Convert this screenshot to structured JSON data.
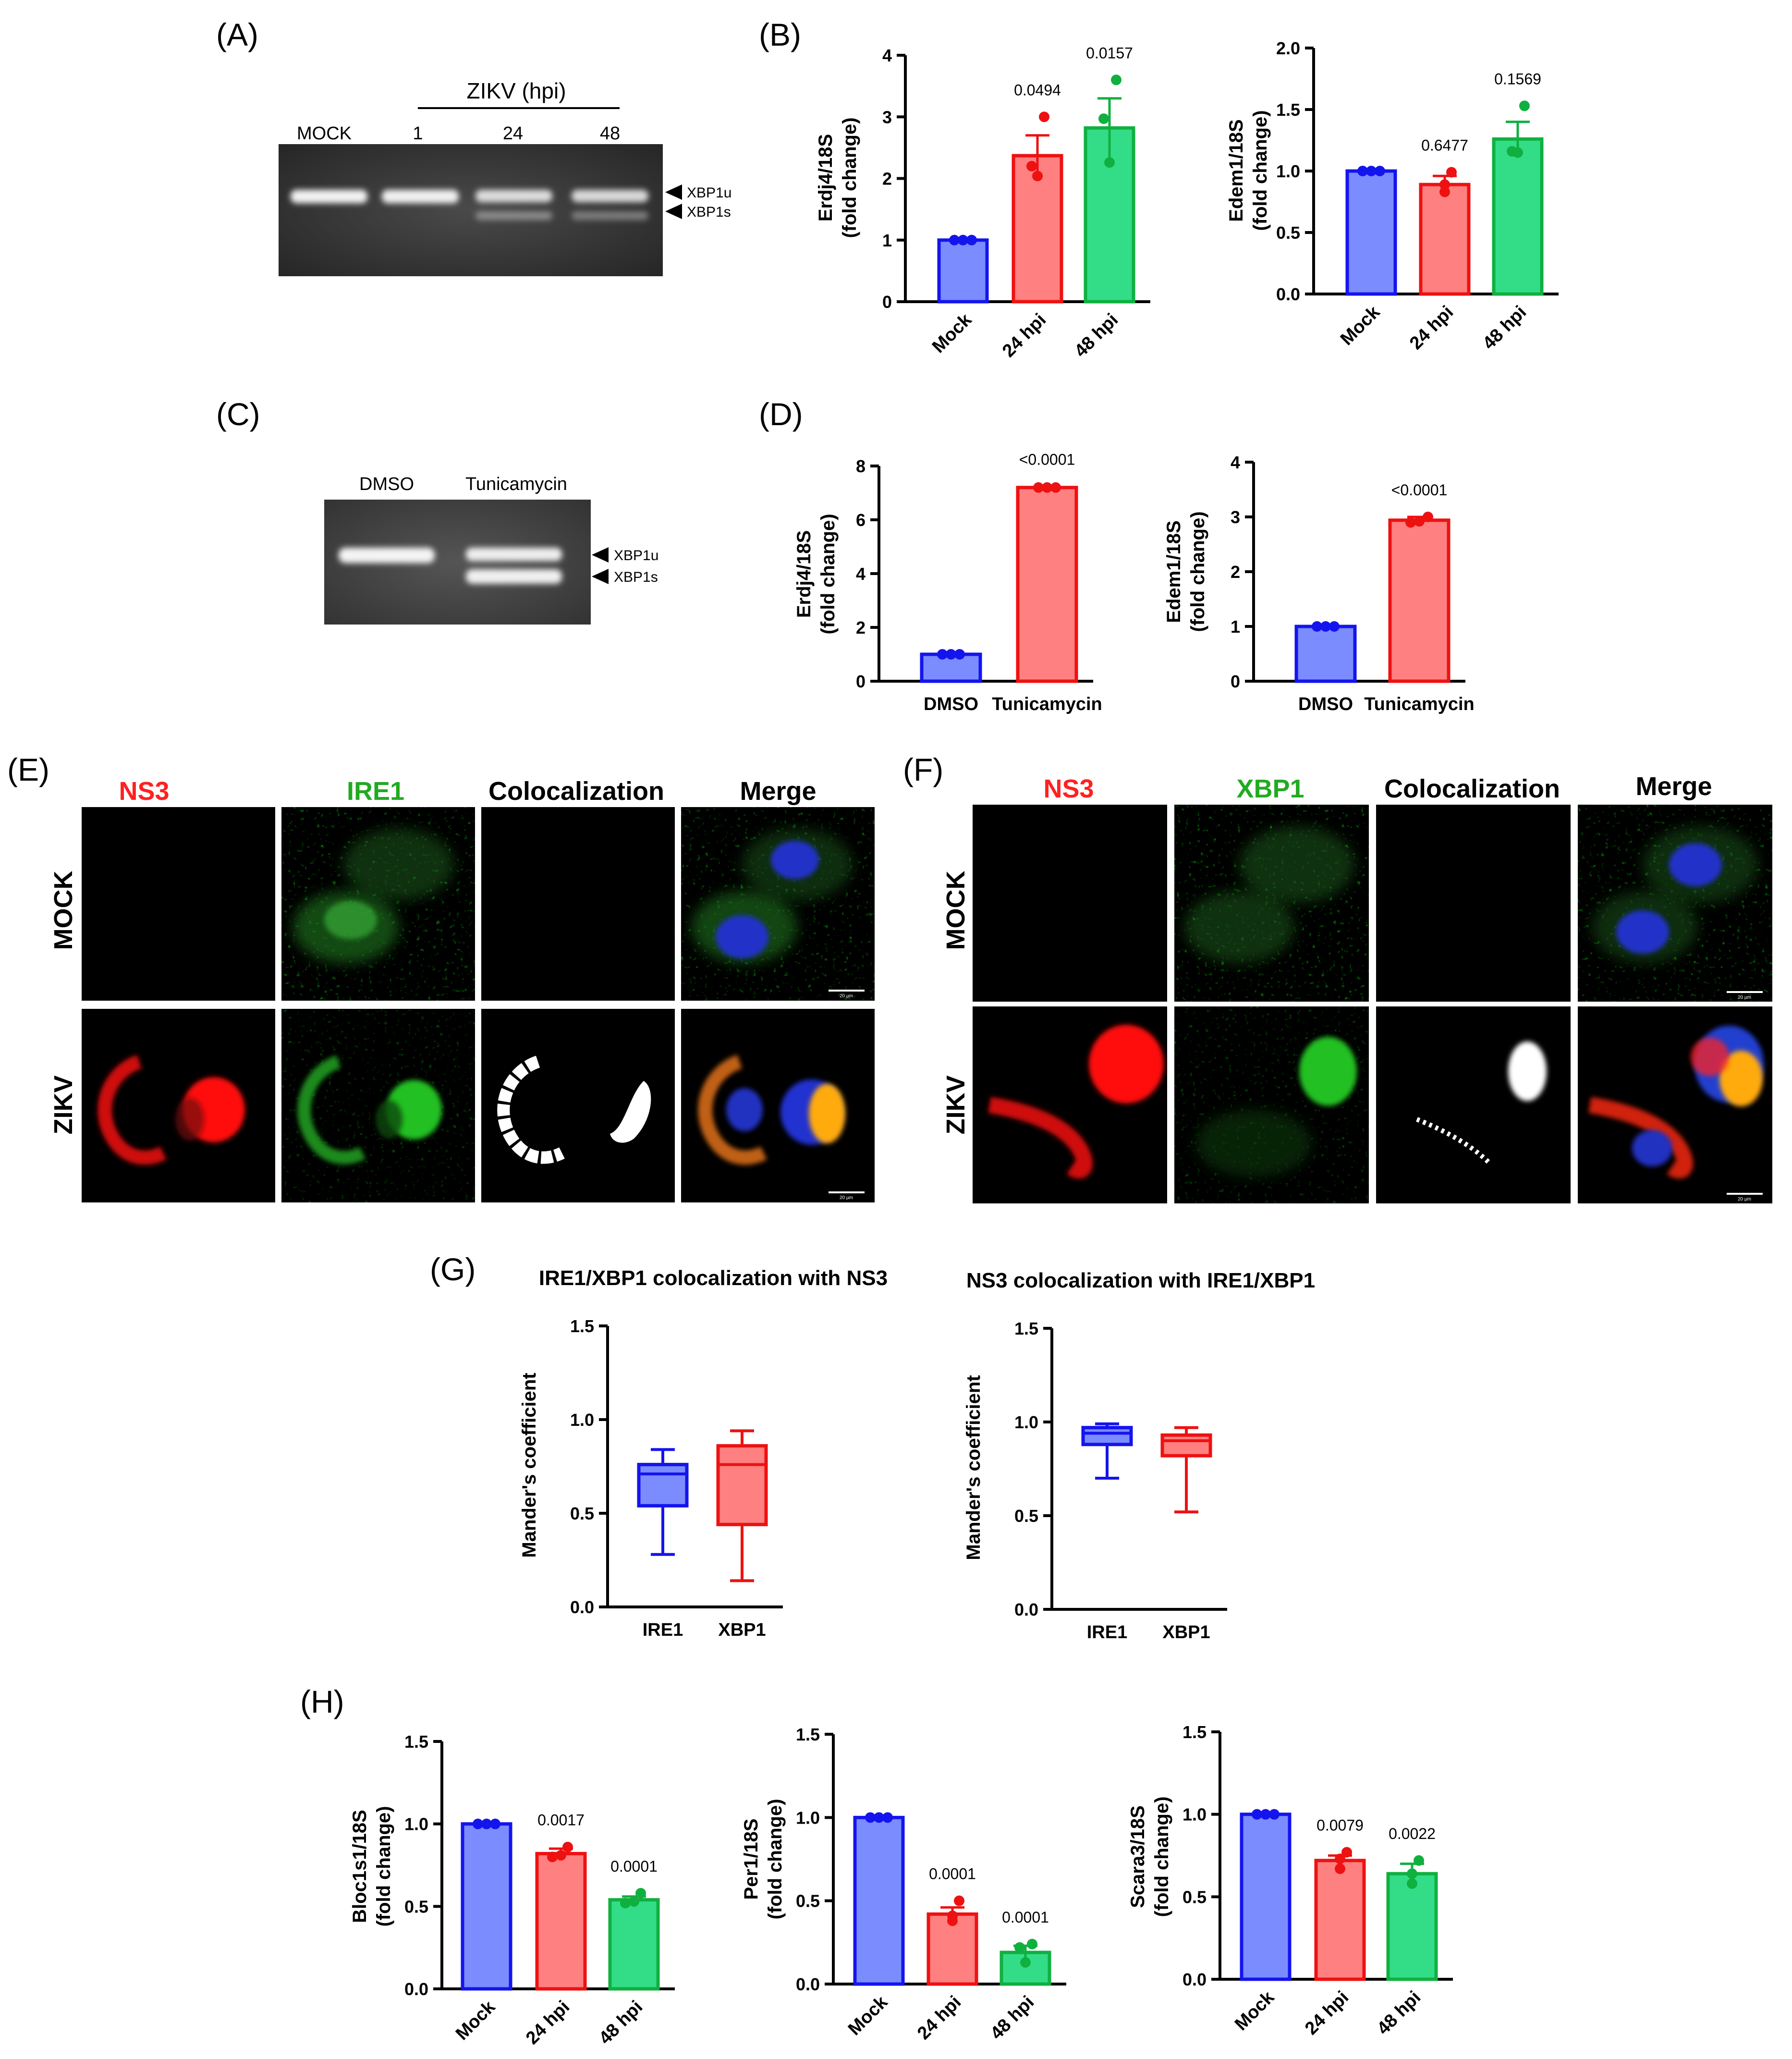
{
  "panel_labels": [
    "(A)",
    "(B)",
    "(C)",
    "(D)",
    "(E)",
    "(F)",
    "(G)",
    "(H)"
  ],
  "colors": {
    "blue_fill": "#7b8cff",
    "blue_edge": "#1414ee",
    "red_fill": "#ff8080",
    "red_edge": "#ee1111",
    "green_fill": "#33dd88",
    "green_edge": "#10b040",
    "mic_red": "#ff2020",
    "mic_green": "#22aa22"
  },
  "gel_a": {
    "group_label": "ZIKV (hpi)",
    "lanes": [
      "MOCK",
      "1",
      "24",
      "48"
    ],
    "bands": [
      "XBP1u",
      "XBP1s"
    ]
  },
  "gel_c": {
    "lanes": [
      "DMSO",
      "Tunicamycin"
    ],
    "bands": [
      "XBP1u",
      "XBP1s"
    ]
  },
  "micro_e": {
    "columns": [
      "NS3",
      "IRE1",
      "Colocalization",
      "Merge"
    ],
    "rows": [
      "MOCK",
      "ZIKV"
    ],
    "scale": "20 µm"
  },
  "micro_f": {
    "columns": [
      "NS3",
      "XBP1",
      "Colocalization",
      "Merge"
    ],
    "rows": [
      "MOCK",
      "ZIKV"
    ],
    "scale": "20 µm"
  },
  "g_titles": [
    "IRE1/XBP1 colocalization with NS3",
    "NS3 colocalization with IRE1/XBP1"
  ],
  "chart_data": [
    {
      "panel": "B",
      "type": "bar",
      "ylabel": "Erdj4/18S\n(fold change)",
      "ylim": [
        0,
        4
      ],
      "ticks": [
        "0",
        "1",
        "2",
        "3",
        "4"
      ],
      "categories": [
        "Mock",
        "24 hpi",
        "48 hpi"
      ],
      "values": [
        1.0,
        2.37,
        2.82
      ],
      "errors": [
        0.0,
        0.33,
        0.48
      ],
      "points": [
        [
          1.0,
          1.0,
          1.0
        ],
        [
          2.04,
          2.2,
          3.0
        ],
        [
          2.26,
          2.97,
          3.6
        ]
      ],
      "pvalues": [
        "",
        "0.0494",
        "0.0157"
      ]
    },
    {
      "panel": "B",
      "type": "bar",
      "ylabel": "Edem1/18S\n(fold change)",
      "ylim": [
        0,
        2
      ],
      "ticks": [
        "0.0",
        "0.5",
        "1.0",
        "1.5",
        "2.0"
      ],
      "categories": [
        "Mock",
        "24 hpi",
        "48 hpi"
      ],
      "values": [
        1.0,
        0.89,
        1.26
      ],
      "errors": [
        0.0,
        0.07,
        0.14
      ],
      "points": [
        [
          1.0,
          1.0,
          1.0
        ],
        [
          0.83,
          0.89,
          0.99
        ],
        [
          1.15,
          1.16,
          1.53
        ]
      ],
      "pvalues": [
        "",
        "0.6477",
        "0.1569"
      ]
    },
    {
      "panel": "D",
      "type": "bar",
      "ylabel": "Erdj4/18S\n(fold change)",
      "ylim": [
        0,
        8
      ],
      "ticks": [
        "0",
        "2",
        "4",
        "6",
        "8"
      ],
      "categories": [
        "DMSO",
        "Tunicamycin"
      ],
      "values": [
        1.0,
        7.2
      ],
      "errors": [
        0.0,
        0.04
      ],
      "points": [
        [
          1.0,
          1.0,
          1.0
        ],
        [
          7.2,
          7.2,
          7.2
        ]
      ],
      "pvalues": [
        "",
        "<0.0001"
      ]
    },
    {
      "panel": "D",
      "type": "bar",
      "ylabel": "Edem1/18S\n(fold change)",
      "ylim": [
        0,
        4
      ],
      "ticks": [
        "0",
        "1",
        "2",
        "3",
        "4"
      ],
      "categories": [
        "DMSO",
        "Tunicamycin"
      ],
      "values": [
        1.0,
        2.94
      ],
      "errors": [
        0.0,
        0.06
      ],
      "points": [
        [
          1.0,
          1.0,
          1.0
        ],
        [
          2.9,
          2.92,
          3.0
        ]
      ],
      "pvalues": [
        "",
        "<0.0001"
      ]
    },
    {
      "panel": "G",
      "type": "box",
      "ylabel": "Mander's coefficient",
      "ylim": [
        0,
        1.5
      ],
      "ticks": [
        "0.0",
        "0.5",
        "1.0",
        "1.5"
      ],
      "categories": [
        "IRE1",
        "XBP1"
      ],
      "boxes": [
        {
          "min": 0.28,
          "q1": 0.54,
          "median": 0.71,
          "q3": 0.76,
          "max": 0.84
        },
        {
          "min": 0.14,
          "q1": 0.44,
          "median": 0.76,
          "q3": 0.86,
          "max": 0.94
        }
      ]
    },
    {
      "panel": "G",
      "type": "box",
      "ylabel": "Mander's coefficient",
      "ylim": [
        0,
        1.5
      ],
      "ticks": [
        "0.0",
        "0.5",
        "1.0",
        "1.5"
      ],
      "categories": [
        "IRE1",
        "XBP1"
      ],
      "boxes": [
        {
          "min": 0.7,
          "q1": 0.88,
          "median": 0.94,
          "q3": 0.97,
          "max": 0.99
        },
        {
          "min": 0.52,
          "q1": 0.82,
          "median": 0.9,
          "q3": 0.93,
          "max": 0.97
        }
      ]
    },
    {
      "panel": "H",
      "type": "bar",
      "ylabel": "Bloc1s1/18S\n(fold change)",
      "ylim": [
        0,
        1.5
      ],
      "ticks": [
        "0.0",
        "0.5",
        "1.0",
        "1.5"
      ],
      "categories": [
        "Mock",
        "24 hpi",
        "48 hpi"
      ],
      "values": [
        1.0,
        0.82,
        0.54
      ],
      "errors": [
        0.0,
        0.03,
        0.02
      ],
      "points": [
        [
          1.0,
          1.0,
          1.0
        ],
        [
          0.8,
          0.81,
          0.86
        ],
        [
          0.52,
          0.53,
          0.58
        ]
      ],
      "pvalues": [
        "",
        "0.0017",
        "0.0001"
      ]
    },
    {
      "panel": "H",
      "type": "bar",
      "ylabel": "Per1/18S\n(fold change)",
      "ylim": [
        0,
        1.5
      ],
      "ticks": [
        "0.0",
        "0.5",
        "1.0",
        "1.5"
      ],
      "categories": [
        "Mock",
        "24 hpi",
        "48 hpi"
      ],
      "values": [
        1.0,
        0.42,
        0.19
      ],
      "errors": [
        0.0,
        0.04,
        0.04
      ],
      "points": [
        [
          1.0,
          1.0,
          1.0
        ],
        [
          0.38,
          0.41,
          0.5
        ],
        [
          0.13,
          0.22,
          0.24
        ]
      ],
      "pvalues": [
        "",
        "0.0001",
        "0.0001"
      ]
    },
    {
      "panel": "H",
      "type": "bar",
      "ylabel": "Scara3/18S\n(fold change)",
      "ylim": [
        0,
        1.5
      ],
      "ticks": [
        "0.0",
        "0.5",
        "1.0",
        "1.5"
      ],
      "categories": [
        "Mock",
        "24 hpi",
        "48 hpi"
      ],
      "values": [
        1.0,
        0.72,
        0.64
      ],
      "errors": [
        0.0,
        0.03,
        0.06
      ],
      "points": [
        [
          1.0,
          1.0,
          1.0
        ],
        [
          0.67,
          0.73,
          0.77
        ],
        [
          0.58,
          0.64,
          0.72
        ]
      ],
      "pvalues": [
        "",
        "0.0079",
        "0.0022"
      ]
    }
  ]
}
